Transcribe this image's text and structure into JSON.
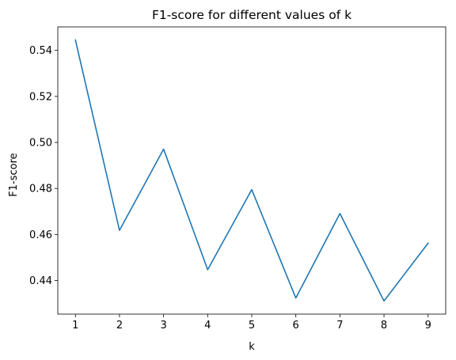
{
  "chart_data": {
    "type": "line",
    "title": "F1-score for different values of k",
    "xlabel": "k",
    "ylabel": "F1-score",
    "x": [
      1,
      2,
      3,
      4,
      5,
      6,
      7,
      8,
      9
    ],
    "series": [
      {
        "values": [
          0.5445,
          0.4618,
          0.4971,
          0.4447,
          0.4795,
          0.4324,
          0.4691,
          0.4311,
          0.4562
        ],
        "color": "#1f77b4"
      }
    ],
    "xticks": [
      1,
      2,
      3,
      4,
      5,
      6,
      7,
      8,
      9
    ],
    "xtick_labels": [
      "1",
      "2",
      "3",
      "4",
      "5",
      "6",
      "7",
      "8",
      "9"
    ],
    "yticks": [
      0.44,
      0.46,
      0.48,
      0.5,
      0.52,
      0.54
    ],
    "ytick_labels": [
      "0.44",
      "0.46",
      "0.48",
      "0.50",
      "0.52",
      "0.54"
    ],
    "xlim": [
      0.6,
      9.4
    ],
    "ylim": [
      0.4254,
      0.5502
    ],
    "grid": false,
    "legend": false
  }
}
